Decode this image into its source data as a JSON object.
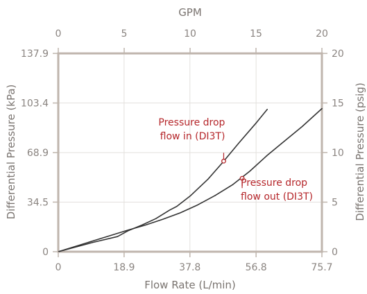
{
  "chart_data": {
    "type": "line",
    "title": "",
    "xlabel_bottom": "Flow Rate (L/min)",
    "xlabel_top": "GPM",
    "ylabel_left": "Differential Pressure (kPa)",
    "ylabel_right": "Differential Pressure (psig)",
    "x_bottom": {
      "range": [
        0,
        75.7
      ],
      "ticks": [
        0,
        18.9,
        37.8,
        56.8,
        75.7
      ],
      "tick_labels": [
        "0",
        "18.9",
        "37.8",
        "56.8",
        "75.7"
      ]
    },
    "x_top": {
      "range": [
        0,
        20
      ],
      "ticks": [
        0,
        5,
        10,
        15,
        20
      ],
      "tick_labels": [
        "0",
        "5",
        "10",
        "15",
        "20"
      ]
    },
    "y_left": {
      "range": [
        0,
        137.9
      ],
      "ticks": [
        0,
        34.5,
        68.9,
        103.4,
        137.9
      ],
      "tick_labels": [
        "0",
        "34.5",
        "68.9",
        "103.4",
        "137.9"
      ]
    },
    "y_right": {
      "range": [
        0,
        20
      ],
      "ticks": [
        0,
        5,
        10,
        15,
        20
      ],
      "tick_labels": [
        "0",
        "5",
        "10",
        "15",
        "20"
      ]
    },
    "grid": true,
    "series": [
      {
        "label": "Pressure drop flow in (DI3T)",
        "label_lines": [
          "Pressure drop",
          "flow in (DI3T)"
        ],
        "color": "#333333",
        "x": [
          0,
          10,
          17,
          20,
          24,
          28,
          32,
          34,
          38,
          43,
          47,
          52,
          57,
          60
        ],
        "y": [
          0,
          6.5,
          10.5,
          14.5,
          18.5,
          23,
          29,
          31.5,
          39,
          50.5,
          61.5,
          76,
          90,
          99
        ],
        "marker": {
          "x": 47.5,
          "y": 63
        }
      },
      {
        "label": "Pressure drop flow out (DI3T)",
        "label_lines": [
          "Pressure drop",
          "flow out (DI3T)"
        ],
        "color": "#333333",
        "x": [
          0,
          10,
          20,
          25,
          30,
          35,
          40,
          45,
          50,
          55,
          60,
          65,
          70,
          75.7
        ],
        "y": [
          0,
          7.5,
          15,
          18.5,
          22.5,
          27,
          32.5,
          39,
          46.5,
          56,
          67,
          77,
          87,
          99.5
        ],
        "marker": {
          "x": 52.8,
          "y": 51
        }
      }
    ]
  }
}
